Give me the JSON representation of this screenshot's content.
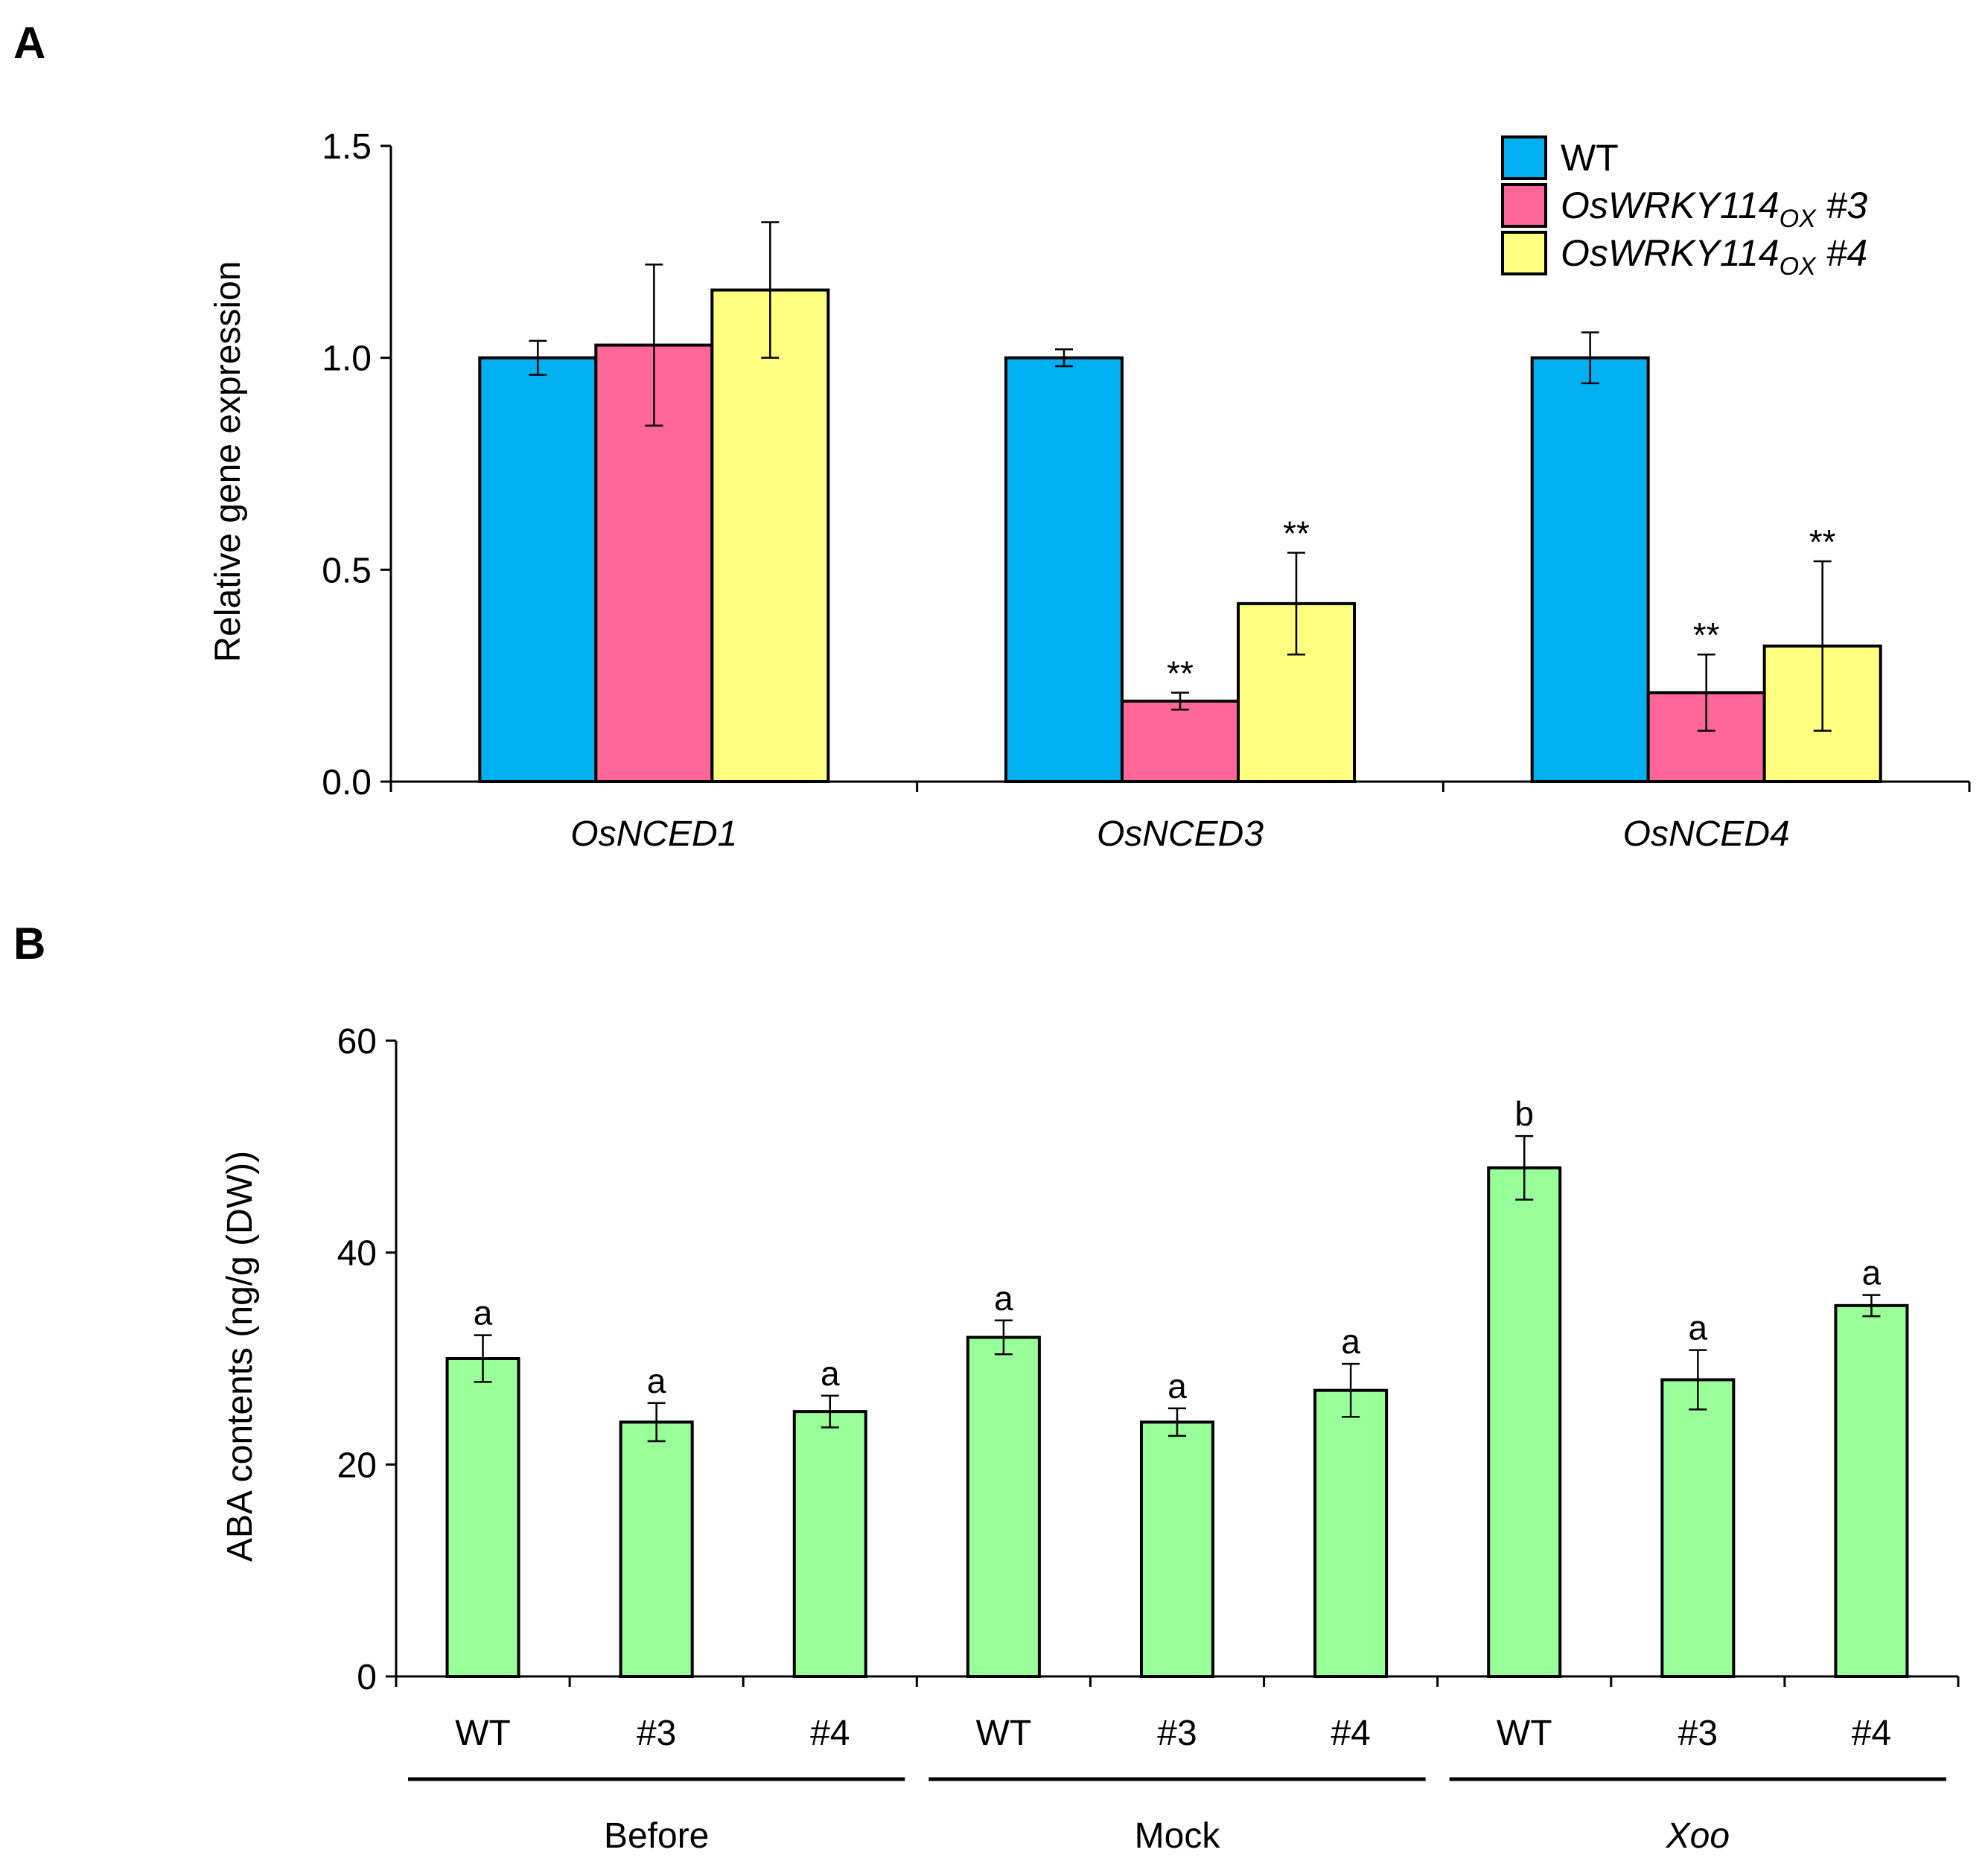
{
  "chart_data": [
    {
      "type": "bar",
      "panel_label": "A",
      "ylabel": "Relative gene expression",
      "ylim": [
        0,
        1.5
      ],
      "yticks": [
        "0.0",
        "0.5",
        "1.0",
        "1.5"
      ],
      "categories": [
        "OsNCED1",
        "OsNCED3",
        "OsNCED4"
      ],
      "series": [
        {
          "name": "WT",
          "color": "#00b0f0",
          "values": [
            1.0,
            1.0,
            1.0
          ],
          "errors": [
            0.04,
            0.02,
            0.06
          ],
          "labels": [
            "",
            "",
            ""
          ]
        },
        {
          "name": "OsWRKY114",
          "name_sub": "OX",
          "name_suffix": " #3",
          "color": "#ff6699",
          "values": [
            1.03,
            0.19,
            0.21
          ],
          "errors": [
            0.19,
            0.02,
            0.09
          ],
          "labels": [
            "",
            "**",
            "**"
          ]
        },
        {
          "name": "OsWRKY114",
          "name_sub": "OX",
          "name_suffix": " #4",
          "color": "#ffff80",
          "values": [
            1.16,
            0.42,
            0.32
          ],
          "errors": [
            0.16,
            0.12,
            0.2
          ],
          "labels": [
            "",
            "**",
            "**"
          ]
        }
      ],
      "legend_position": "top-right"
    },
    {
      "type": "bar",
      "panel_label": "B",
      "ylabel": "ABA contents (ng/g (DW))",
      "ylim": [
        0,
        60
      ],
      "yticks": [
        "0",
        "20",
        "40",
        "60"
      ],
      "color": "#99ff99",
      "categories": [
        "WT",
        "#3",
        "#4",
        "WT",
        "#3",
        "#4",
        "WT",
        "#3",
        "#4"
      ],
      "values": [
        30,
        24,
        25,
        32,
        24,
        27,
        48,
        28,
        35
      ],
      "errors": [
        2.2,
        1.8,
        1.5,
        1.6,
        1.3,
        2.5,
        3.0,
        2.8,
        1.0
      ],
      "labels": [
        "a",
        "a",
        "a",
        "a",
        "a",
        "a",
        "b",
        "a",
        "a"
      ],
      "groups": [
        {
          "name": "Before",
          "italic": false
        },
        {
          "name": "Mock",
          "italic": false
        },
        {
          "name": "Xoo",
          "italic": true
        }
      ]
    }
  ]
}
